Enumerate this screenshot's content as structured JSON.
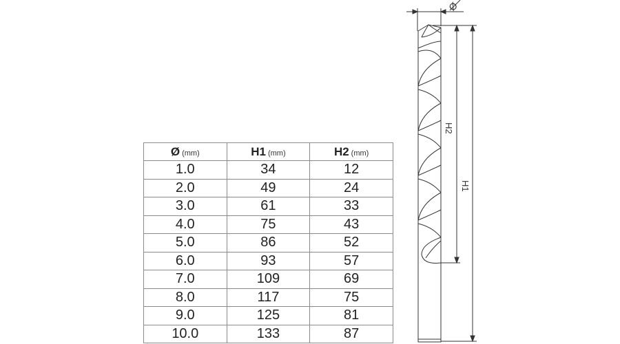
{
  "table": {
    "headers": [
      {
        "symbol": "Ø",
        "unit": "(mm)"
      },
      {
        "symbol": "H1",
        "unit": "(mm)"
      },
      {
        "symbol": "H2",
        "unit": "(mm)"
      }
    ],
    "rows": [
      [
        "1.0",
        "34",
        "12"
      ],
      [
        "2.0",
        "49",
        "24"
      ],
      [
        "3.0",
        "61",
        "33"
      ],
      [
        "4.0",
        "75",
        "43"
      ],
      [
        "5.0",
        "86",
        "52"
      ],
      [
        "6.0",
        "93",
        "57"
      ],
      [
        "7.0",
        "109",
        "69"
      ],
      [
        "8.0",
        "117",
        "75"
      ],
      [
        "9.0",
        "125",
        "81"
      ],
      [
        "10.0",
        "133",
        "87"
      ]
    ]
  },
  "drawing": {
    "diameter_label": "Ø",
    "h1_label": "H1",
    "h2_label": "H2",
    "line_color": "#333333"
  }
}
